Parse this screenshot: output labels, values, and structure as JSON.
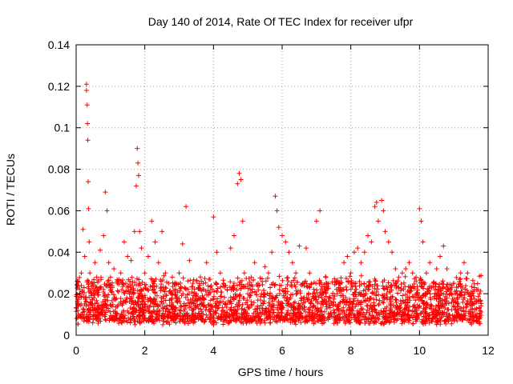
{
  "chart_data": {
    "type": "scatter",
    "title": "Day 140 of 2014, Rate Of TEC Index for receiver ufpr",
    "xlabel": "GPS time / hours",
    "ylabel": "ROTI / TECUs",
    "xlim": [
      0,
      12
    ],
    "ylim": [
      0,
      0.14
    ],
    "xticks": [
      0,
      2,
      4,
      6,
      8,
      10,
      12
    ],
    "xtick_labels": [
      "0",
      "2",
      "4",
      "6",
      "8",
      "10",
      "12"
    ],
    "yticks": [
      0,
      0.02,
      0.04,
      0.06,
      0.08,
      0.1,
      0.12,
      0.14
    ],
    "ytick_labels": [
      "0",
      "0.02",
      "0.04",
      "0.06",
      "0.08",
      "0.1",
      "0.12",
      "0.14"
    ],
    "grid": true,
    "marker": "+",
    "marker_color": "#ff0000",
    "series": [
      {
        "name": "ROTI",
        "x": [
          0.05,
          0.1,
          0.15,
          0.2,
          0.25,
          0.3,
          0.3,
          0.32,
          0.33,
          0.34,
          0.35,
          0.36,
          0.38,
          0.4,
          0.45,
          0.5,
          0.55,
          0.6,
          0.65,
          0.7,
          0.8,
          0.85,
          0.9,
          0.95,
          1.0,
          1.1,
          1.2,
          1.3,
          1.4,
          1.5,
          1.6,
          1.7,
          1.75,
          1.78,
          1.8,
          1.82,
          1.85,
          1.9,
          2.0,
          2.1,
          2.2,
          2.3,
          2.4,
          2.5,
          2.6,
          2.7,
          2.8,
          2.9,
          3.0,
          3.1,
          3.2,
          3.3,
          3.4,
          3.5,
          3.6,
          3.7,
          3.8,
          3.9,
          4.0,
          4.1,
          4.2,
          4.3,
          4.4,
          4.5,
          4.6,
          4.7,
          4.75,
          4.8,
          4.85,
          4.9,
          5.0,
          5.1,
          5.2,
          5.3,
          5.4,
          5.5,
          5.6,
          5.7,
          5.8,
          5.85,
          5.9,
          6.0,
          6.1,
          6.2,
          6.3,
          6.4,
          6.5,
          6.6,
          6.7,
          6.8,
          6.9,
          7.0,
          7.1,
          7.2,
          7.3,
          7.4,
          7.5,
          7.6,
          7.7,
          7.8,
          7.9,
          8.0,
          8.1,
          8.2,
          8.3,
          8.4,
          8.5,
          8.6,
          8.7,
          8.75,
          8.8,
          8.9,
          8.95,
          9.0,
          9.1,
          9.2,
          9.3,
          9.4,
          9.5,
          9.6,
          9.7,
          9.8,
          9.9,
          10.0,
          10.05,
          10.1,
          10.2,
          10.3,
          10.4,
          10.5,
          10.6,
          10.7,
          10.8,
          10.9,
          11.0,
          11.1,
          11.2,
          11.3,
          11.4,
          11.5,
          11.6,
          11.7,
          11.75
        ],
        "y": [
          0.012,
          0.02,
          0.03,
          0.051,
          0.038,
          0.121,
          0.118,
          0.111,
          0.102,
          0.094,
          0.074,
          0.061,
          0.045,
          0.03,
          0.025,
          0.02,
          0.035,
          0.028,
          0.022,
          0.041,
          0.048,
          0.069,
          0.06,
          0.035,
          0.028,
          0.032,
          0.025,
          0.03,
          0.045,
          0.038,
          0.036,
          0.05,
          0.072,
          0.09,
          0.083,
          0.077,
          0.05,
          0.042,
          0.03,
          0.038,
          0.055,
          0.045,
          0.035,
          0.05,
          0.03,
          0.025,
          0.028,
          0.022,
          0.03,
          0.044,
          0.062,
          0.036,
          0.025,
          0.02,
          0.018,
          0.025,
          0.035,
          0.027,
          0.057,
          0.04,
          0.03,
          0.025,
          0.022,
          0.042,
          0.048,
          0.073,
          0.078,
          0.075,
          0.055,
          0.03,
          0.02,
          0.028,
          0.035,
          0.025,
          0.02,
          0.033,
          0.03,
          0.04,
          0.067,
          0.06,
          0.052,
          0.048,
          0.045,
          0.04,
          0.035,
          0.03,
          0.043,
          0.025,
          0.042,
          0.03,
          0.02,
          0.055,
          0.06,
          0.02,
          0.025,
          0.018,
          0.016,
          0.02,
          0.022,
          0.035,
          0.038,
          0.03,
          0.04,
          0.042,
          0.035,
          0.04,
          0.048,
          0.045,
          0.062,
          0.064,
          0.055,
          0.065,
          0.06,
          0.05,
          0.045,
          0.04,
          0.032,
          0.028,
          0.03,
          0.032,
          0.035,
          0.03,
          0.028,
          0.061,
          0.055,
          0.045,
          0.03,
          0.035,
          0.025,
          0.032,
          0.038,
          0.043,
          0.032,
          0.02,
          0.025,
          0.018,
          0.03,
          0.035,
          0.03,
          0.02,
          0.015,
          0.022,
          0.02
        ]
      }
    ],
    "dense_band_note": "",
    "band": {
      "x_start": 0,
      "x_end": 11.8,
      "y_low": 0.005,
      "y_high": 0.025
    }
  }
}
